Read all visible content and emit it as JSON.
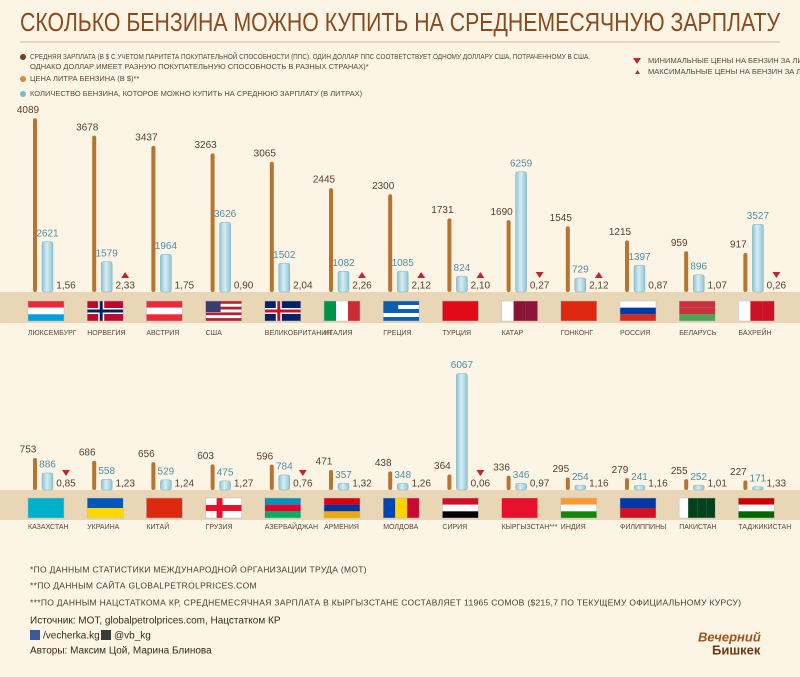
{
  "title": "СКОЛЬКО БЕНЗИНА МОЖНО КУПИТЬ НА СРЕДНЕМЕСЯЧНУЮ ЗАРПЛАТУ",
  "salary_note": "ОДНАКО ДОЛЛАР ИМЕЕТ РАЗНУЮ ПОКУПАТЕЛЬНУЮ СПОСОБНОСТЬ В РАЗНЫХ СТРАНАХ)*",
  "min_legend": "МИНИМАЛЬНЫЕ ЦЕНЫ НА БЕНЗИН ЗА ЛИТР",
  "max_legend": "МАКСИМАЛЬНЫЕ ЦЕНЫ НА БЕНЗИН ЗА ЛИТР",
  "chart_data": [
    {
      "type": "bar",
      "categories": [
        "ЛЮКСЕМБУРГ",
        "НОРВЕГИЯ",
        "АВСТРИЯ",
        "США",
        "ВЕЛИКОБРИТАНИЯ",
        "ИТАЛИЯ",
        "ГРЕЦИЯ",
        "ТУРЦИЯ",
        "КАТАР",
        "ГОНКОНГ",
        "РОССИЯ",
        "БЕЛАРУСЬ",
        "БАХРЕЙН"
      ],
      "series": [
        {
          "name": "СРЕДНЯЯ ЗАРПЛАТА (В $ С УЧЕТОМ ПАРИТЕТА ПОКУПАТЕЛЬНОЙ СПОСОБНОСТИ (ППС). ОДИН ДОЛЛАР ППС СООТВЕТСТВУЕТ ОДНОМУ ДОЛЛАРУ США, ПОТРАЧЕННОМУ В США.",
          "color": "#b8732e",
          "values": [
            4089,
            3678,
            3437,
            3263,
            3065,
            2445,
            2300,
            1731,
            1690,
            1545,
            1215,
            959,
            917
          ]
        },
        {
          "name": "КОЛИЧЕСТВО БЕНЗИНА, КОТОРОЕ МОЖНО КУПИТЬ НА СРЕДНЮЮ ЗАРПЛАТУ (В ЛИТРАХ)",
          "color": "#a8d3df",
          "values": [
            2621,
            1579,
            1964,
            3626,
            1502,
            1082,
            1085,
            824,
            6259,
            729,
            1397,
            896,
            3527
          ]
        },
        {
          "name": "ЦЕНА ЛИТРА БЕНЗИНА (В $)**",
          "color": "#d98a3a",
          "values": [
            1.56,
            2.33,
            1.75,
            0.9,
            2.04,
            2.26,
            2.12,
            2.1,
            0.27,
            2.12,
            0.87,
            1.07,
            0.26
          ],
          "value_labels": [
            "1,56",
            "2,33",
            "1,75",
            "0,90",
            "2,04",
            "2,26",
            "2,12",
            "2,10",
            "0,27",
            "2,12",
            "0,87",
            "1,07",
            "0,26"
          ],
          "markers": [
            null,
            "max",
            null,
            null,
            null,
            "max",
            "max",
            "max",
            "min",
            "max",
            null,
            null,
            "min"
          ]
        }
      ]
    },
    {
      "type": "bar",
      "categories": [
        "КАЗАХСТАН",
        "УКРАИНА",
        "КИТАЙ",
        "ГРУЗИЯ",
        "АЗЕРБАЙДЖАН",
        "АРМЕНИЯ",
        "МОЛДОВА",
        "СИРИЯ",
        "КЫРГЫЗСТАН***",
        "ИНДИЯ",
        "ФИЛИППИНЫ",
        "ПАКИСТАН",
        "ТАДЖИКИСТАН"
      ],
      "series": [
        {
          "color": "#b8732e",
          "values": [
            753,
            686,
            656,
            603,
            596,
            471,
            438,
            364,
            336,
            295,
            279,
            255,
            227
          ]
        },
        {
          "color": "#a8d3df",
          "values": [
            886,
            558,
            529,
            475,
            784,
            357,
            348,
            6067,
            346,
            254,
            241,
            252,
            171
          ]
        },
        {
          "color": "#d98a3a",
          "values": [
            0.85,
            1.23,
            1.24,
            1.27,
            0.76,
            1.32,
            1.26,
            0.06,
            0.97,
            1.16,
            1.16,
            1.01,
            1.33
          ],
          "value_labels": [
            "0,85",
            "1,23",
            "1,24",
            "1,27",
            "0,76",
            "1,32",
            "1,26",
            "0,06",
            "0,97",
            "1,16",
            "1,16",
            "1,01",
            "1,33"
          ],
          "markers": [
            "min",
            null,
            null,
            null,
            "min",
            null,
            null,
            "min",
            null,
            null,
            null,
            null,
            null
          ]
        }
      ]
    }
  ],
  "footnotes": [
    "*ПО ДАННЫМ СТАТИСТИКИ МЕЖДУНАРОДНОЙ ОРГАНИЗАЦИИ ТРУДА (МОТ)",
    "**ПО ДАННЫМ САЙТА GLOBALPETROLPRICES.COM",
    "***ПО ДАННЫМ НАЦСТАТКОМА КР, СРЕДНЕМЕСЯЧНАЯ ЗАРПЛАТА В КЫРГЫЗСТАНЕ СОСТАВЛЯЕТ 11965 СОМОВ ($215,7 ПО ТЕКУЩЕМУ ОФИЦИАЛЬНОМУ КУРСУ)"
  ],
  "source": "Источник: МОТ, globalpetrolprices.com, Нацстатком КР",
  "facebook": "/vecherka.kg",
  "twitter": "@vb_kg",
  "authors": "Авторы: Максим Цой, Марина Блинова",
  "logo": [
    "Вечерний",
    "Бишкек"
  ]
}
